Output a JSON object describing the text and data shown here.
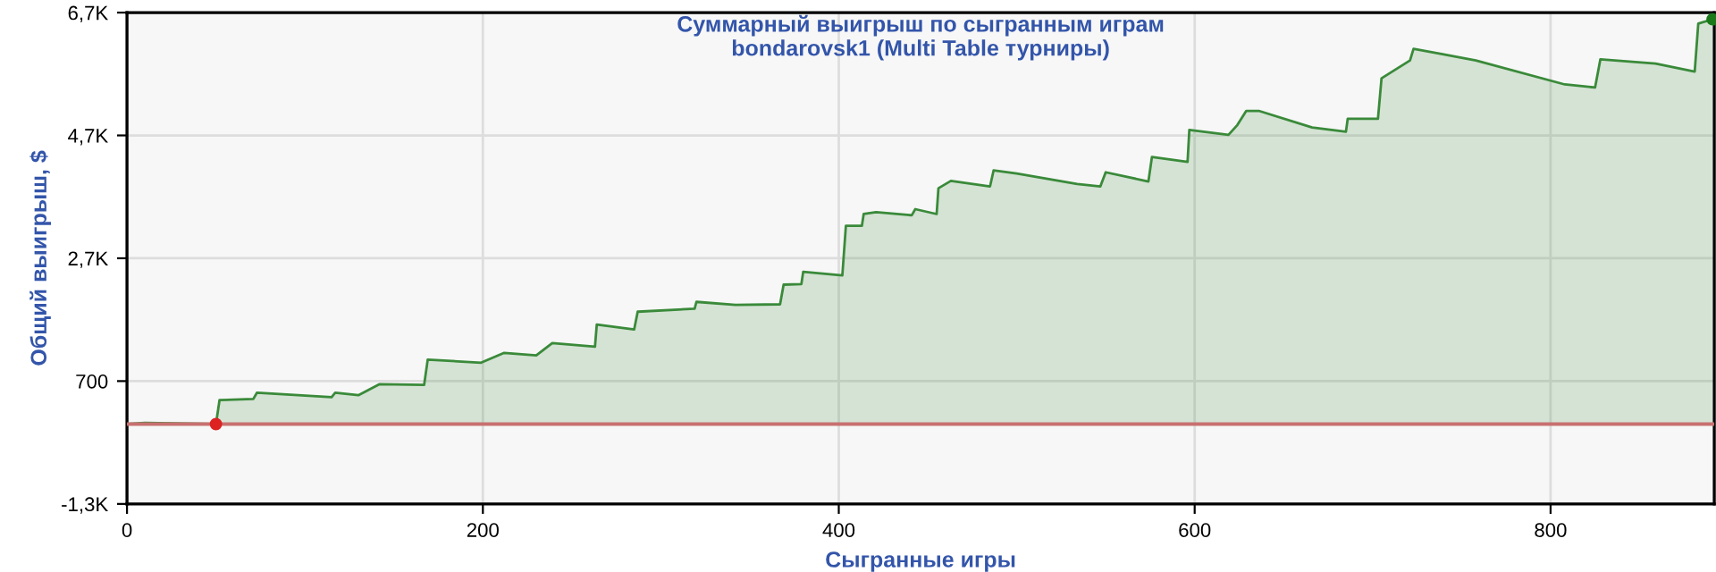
{
  "chart_data": {
    "type": "area",
    "title": "Суммарный выигрыш по сыгранным играм\nbondarovsk1 (Multi Table турниры)",
    "xlabel": "Сыгранные игры",
    "ylabel": "Общий выигрыш, $",
    "series": [
      {
        "color": "#3a8a3a",
        "x": [
          0,
          10,
          50,
          52,
          71,
          73,
          115,
          117,
          130,
          142,
          167,
          169,
          199,
          212,
          230,
          239,
          263,
          264,
          285,
          287,
          319,
          320,
          342,
          367,
          369,
          379,
          380,
          402,
          404,
          413,
          414,
          421,
          441,
          443,
          455,
          456,
          463,
          485,
          487,
          500,
          534,
          547,
          550,
          574,
          576,
          596,
          597,
          619,
          624,
          629,
          636,
          666,
          685,
          686,
          703,
          705,
          721,
          723,
          738,
          758,
          808,
          825,
          828,
          859,
          881,
          883,
          891
        ],
        "values": [
          0,
          20,
          0,
          390,
          410,
          510,
          440,
          510,
          470,
          650,
          640,
          1050,
          1000,
          1160,
          1120,
          1320,
          1260,
          1620,
          1540,
          1830,
          1880,
          1990,
          1940,
          1950,
          2270,
          2280,
          2480,
          2420,
          3230,
          3230,
          3420,
          3450,
          3400,
          3500,
          3420,
          3840,
          3960,
          3870,
          4130,
          4080,
          3910,
          3870,
          4100,
          3950,
          4350,
          4270,
          4790,
          4710,
          4870,
          5100,
          5100,
          4830,
          4760,
          4970,
          4970,
          5630,
          5920,
          6110,
          6030,
          5920,
          5530,
          5480,
          5940,
          5870,
          5740,
          6520,
          6590
        ]
      },
      {
        "type": "scatter",
        "marker": "circle",
        "x": [
          50,
          891
        ],
        "values": [
          0,
          6590
        ],
        "colors": [
          "#dd2222",
          "#1a7a1a"
        ]
      }
    ],
    "xlim": [
      0,
      892
    ],
    "xticks": [
      0,
      200,
      400,
      600,
      800
    ],
    "ylim": [
      -1300,
      6700
    ],
    "yticks": [
      {
        "value": -1300,
        "label": "-1,3K"
      },
      700,
      {
        "value": 2700,
        "label": "2,7K"
      },
      {
        "value": 4700,
        "label": "4,7K"
      },
      {
        "value": 6700,
        "label": "6,7K"
      }
    ],
    "grid": true,
    "ref_lines": [
      {
        "axis": "y",
        "value": 0,
        "color": "#c87070"
      }
    ]
  }
}
